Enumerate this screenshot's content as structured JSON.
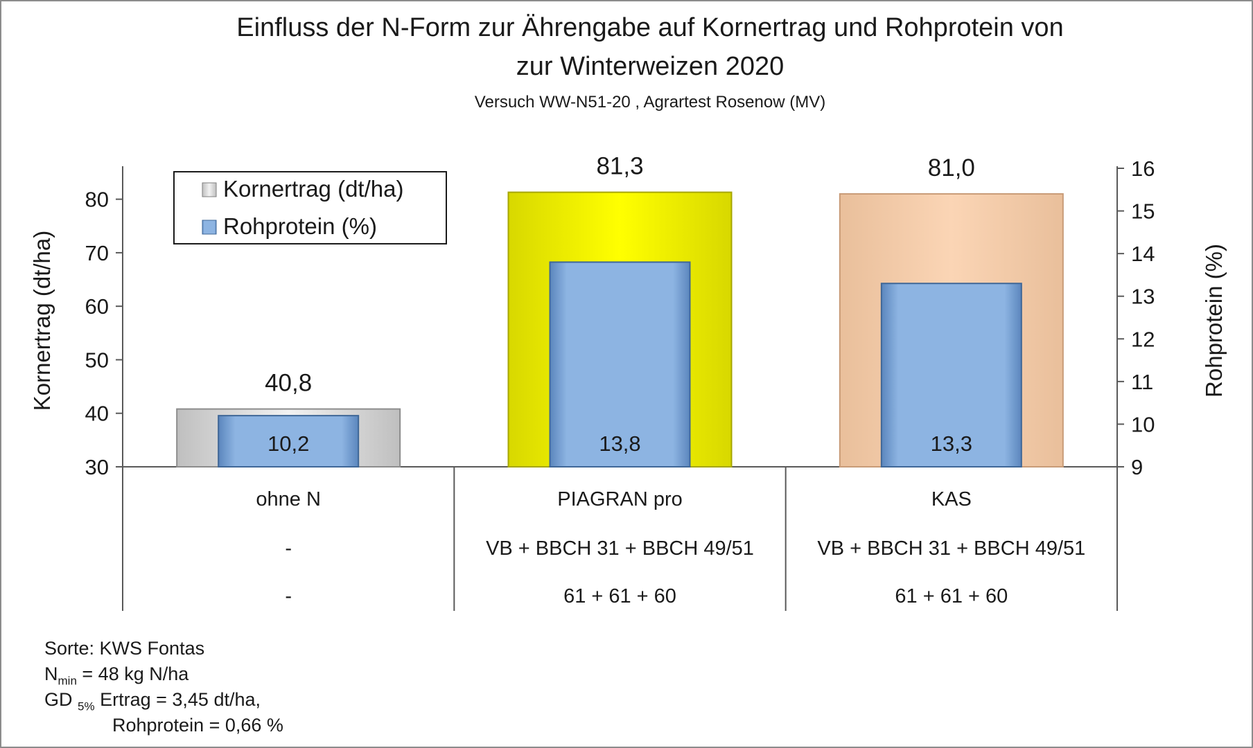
{
  "chart_data": {
    "type": "bar",
    "title_line1": "Einfluss der N-Form zur Ährengabe auf Kornertrag und Rohprotein von",
    "title_line2": "zur Winterweizen 2020",
    "subtitle": "Versuch WW-N51-20 , Agrartest Rosenow (MV)",
    "ylabel_left": "Kornertrag (dt/ha)",
    "ylabel_right": "Rohprotein (%)",
    "ylim_left": [
      30,
      85
    ],
    "ylim_right": [
      9,
      16
    ],
    "yticks_left": [
      "30",
      "40",
      "50",
      "60",
      "70",
      "80"
    ],
    "yticks_right": [
      "9",
      "10",
      "11",
      "12",
      "13",
      "14",
      "15",
      "16"
    ],
    "legend_position": "top-left",
    "categories": [
      {
        "name": "ohne N",
        "row2": "-",
        "row3": "-"
      },
      {
        "name": "PIAGRAN pro",
        "row2": "VB + BBCH 31 + BBCH 49/51",
        "row3": "61 + 61 + 60"
      },
      {
        "name": "KAS",
        "row2": "VB + BBCH 31 + BBCH 49/51",
        "row3": "61 + 61 + 60"
      }
    ],
    "series": [
      {
        "name": "Kornertrag (dt/ha)",
        "axis": "left",
        "values": [
          40.8,
          81.3,
          81.0
        ],
        "labels": [
          "40,8",
          "81,3",
          "81,0"
        ],
        "colors": [
          "#d9d9d9",
          "#ffff00",
          "#fbd5b5"
        ]
      },
      {
        "name": "Rohprotein (%)",
        "axis": "right",
        "values": [
          10.2,
          13.8,
          13.3
        ],
        "labels": [
          "10,2",
          "13,8",
          "13,3"
        ],
        "color": "#8db4e2"
      }
    ]
  },
  "notes": {
    "sorte": "Sorte: KWS Fontas",
    "nmin_prefix": "N",
    "nmin_sub": "min",
    "nmin_rest": " = 48 kg N/ha",
    "gd_prefix": "GD ",
    "gd_sub": "5%",
    "gd_rest": " Ertrag = 3,45 dt/ha,",
    "gd_line2": "Rohprotein  = 0,66 %"
  }
}
